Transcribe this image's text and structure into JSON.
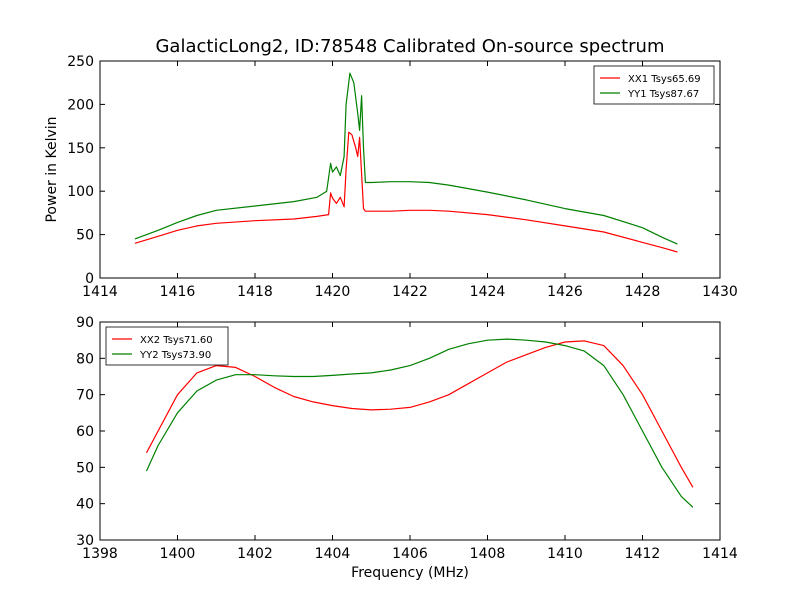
{
  "figure_title": "GalacticLong2, ID:78548 Calibrated On-source spectrum",
  "chart_data": [
    {
      "type": "line",
      "ylabel": "Power in Kelvin",
      "xlabel": "",
      "xlim": [
        1414,
        1430
      ],
      "ylim": [
        0,
        250
      ],
      "xticks": [
        "1414",
        "1416",
        "1418",
        "1420",
        "1422",
        "1424",
        "1426",
        "1428",
        "1430"
      ],
      "yticks": [
        "0",
        "50",
        "100",
        "150",
        "200",
        "250"
      ],
      "grid": false,
      "legend_position": "top-right",
      "series": [
        {
          "name": "XX1 Tsys65.69",
          "color": "#ff0000",
          "x": [
            1414.9,
            1415.5,
            1416.0,
            1416.5,
            1417.0,
            1418.0,
            1419.0,
            1419.6,
            1419.9,
            1419.95,
            1420.0,
            1420.1,
            1420.2,
            1420.3,
            1420.35,
            1420.42,
            1420.5,
            1420.6,
            1420.65,
            1420.7,
            1420.75,
            1420.8,
            1420.85,
            1421.0,
            1421.5,
            1422.0,
            1422.5,
            1423.0,
            1424.0,
            1425.0,
            1426.0,
            1427.0,
            1428.0,
            1428.5,
            1428.9
          ],
          "y": [
            40,
            48,
            55,
            60,
            63,
            66,
            68,
            71,
            73,
            98,
            92,
            86,
            93,
            82,
            125,
            168,
            165,
            150,
            140,
            162,
            120,
            80,
            77,
            77,
            77,
            78,
            78,
            77,
            73,
            67,
            60,
            53,
            41,
            35,
            30
          ]
        },
        {
          "name": "YY1 Tsys87.67",
          "color": "#008000",
          "x": [
            1414.9,
            1415.5,
            1416.0,
            1416.5,
            1417.0,
            1418.0,
            1419.0,
            1419.6,
            1419.85,
            1419.95,
            1420.0,
            1420.1,
            1420.2,
            1420.3,
            1420.35,
            1420.45,
            1420.55,
            1420.65,
            1420.7,
            1420.75,
            1420.8,
            1420.85,
            1421.0,
            1421.5,
            1422.0,
            1422.5,
            1423.0,
            1424.0,
            1425.0,
            1426.0,
            1427.0,
            1428.0,
            1428.5,
            1428.9
          ],
          "y": [
            45,
            55,
            64,
            72,
            78,
            83,
            88,
            93,
            100,
            132,
            122,
            128,
            118,
            140,
            200,
            236,
            225,
            190,
            170,
            210,
            150,
            110,
            110,
            111,
            111,
            110,
            107,
            99,
            90,
            80,
            72,
            58,
            47,
            39
          ]
        }
      ]
    },
    {
      "type": "line",
      "ylabel": "",
      "xlabel": "Frequency (MHz)",
      "xlim": [
        1398,
        1414
      ],
      "ylim": [
        30,
        90
      ],
      "xticks": [
        "1398",
        "1400",
        "1402",
        "1404",
        "1406",
        "1408",
        "1410",
        "1412",
        "1414"
      ],
      "yticks": [
        "30",
        "40",
        "50",
        "60",
        "70",
        "80",
        "90"
      ],
      "grid": false,
      "legend_position": "top-left",
      "series": [
        {
          "name": "XX2 Tsys71.60",
          "color": "#ff0000",
          "x": [
            1399.2,
            1399.5,
            1400.0,
            1400.5,
            1401.0,
            1401.5,
            1402.0,
            1402.5,
            1403.0,
            1403.5,
            1404.0,
            1404.5,
            1405.0,
            1405.5,
            1406.0,
            1406.5,
            1407.0,
            1407.5,
            1408.0,
            1408.5,
            1409.0,
            1409.5,
            1410.0,
            1410.5,
            1411.0,
            1411.5,
            1412.0,
            1412.5,
            1413.0,
            1413.3
          ],
          "y": [
            54,
            60,
            70,
            76,
            78,
            77.5,
            75,
            72,
            69.5,
            68,
            67,
            66.2,
            65.8,
            66,
            66.5,
            68,
            70,
            73,
            76,
            79,
            81,
            83,
            84.5,
            84.8,
            83.5,
            78,
            70,
            60,
            50,
            44.5
          ]
        },
        {
          "name": "YY2 Tsys73.90",
          "color": "#008000",
          "x": [
            1399.2,
            1399.5,
            1400.0,
            1400.5,
            1401.0,
            1401.5,
            1402.0,
            1402.5,
            1403.0,
            1403.5,
            1404.0,
            1404.5,
            1405.0,
            1405.5,
            1406.0,
            1406.5,
            1407.0,
            1407.5,
            1408.0,
            1408.5,
            1409.0,
            1409.5,
            1410.0,
            1410.5,
            1411.0,
            1411.5,
            1412.0,
            1412.5,
            1413.0,
            1413.3
          ],
          "y": [
            49,
            56,
            65,
            71,
            74,
            75.5,
            75.5,
            75.2,
            75,
            75,
            75.3,
            75.7,
            76,
            76.8,
            78,
            80,
            82.5,
            84,
            85,
            85.3,
            85,
            84.5,
            83.5,
            82,
            78,
            70,
            60,
            50,
            42,
            39
          ]
        }
      ]
    }
  ]
}
